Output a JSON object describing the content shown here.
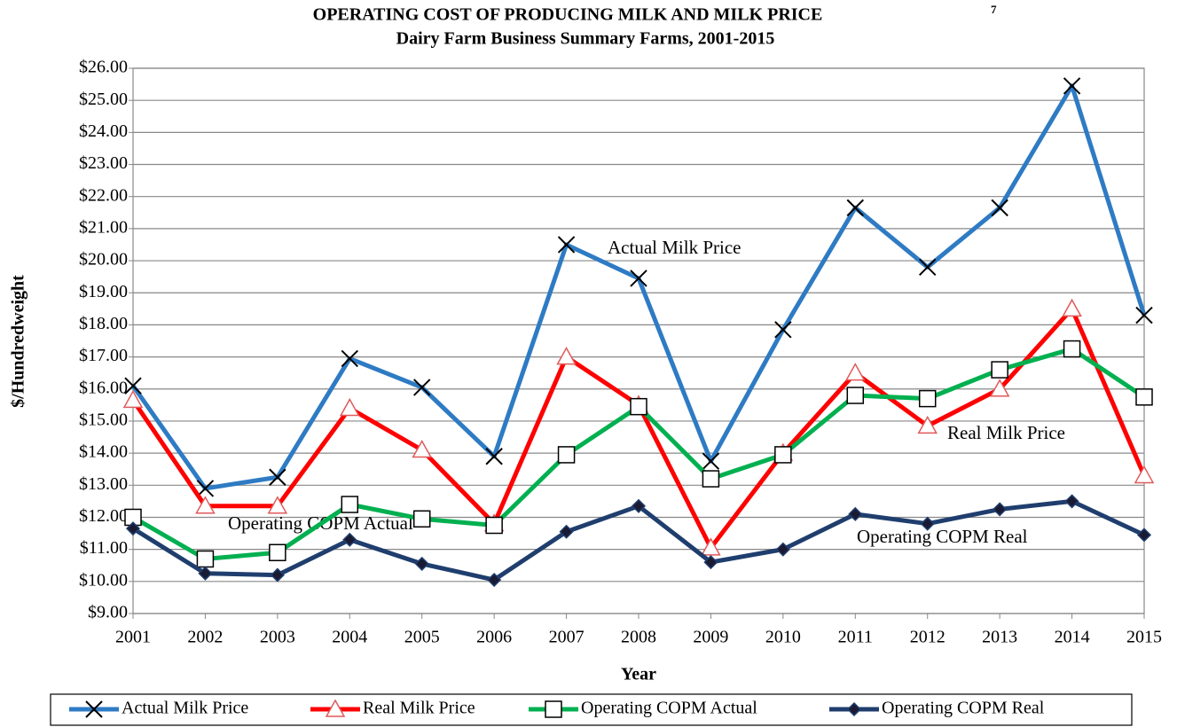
{
  "chart_data": {
    "type": "line",
    "title": "OPERATING COST OF PRODUCING MILK AND MILK PRICE",
    "title_note": "7",
    "subtitle": "Dairy Farm Business Summary Farms, 2001-2015",
    "x_label": "Year",
    "y_label": "$/Hundredweight",
    "annotations": [
      "Actual Milk Price",
      "Real Milk Price",
      "Operating COPM Actual",
      "Operating COPM Real"
    ],
    "categories": [
      "2001",
      "2002",
      "2003",
      "2004",
      "2005",
      "2006",
      "2007",
      "2008",
      "2009",
      "2010",
      "2011",
      "2012",
      "2013",
      "2014",
      "2015"
    ],
    "ylim": [
      9,
      26
    ],
    "yticks": [
      {
        "value": 9,
        "label": "$9.00"
      },
      {
        "value": 10,
        "label": "$10.00"
      },
      {
        "value": 11,
        "label": "$11.00"
      },
      {
        "value": 12,
        "label": "$12.00"
      },
      {
        "value": 13,
        "label": "$13.00"
      },
      {
        "value": 14,
        "label": "$14.00"
      },
      {
        "value": 15,
        "label": "$15.00"
      },
      {
        "value": 16,
        "label": "$16.00"
      },
      {
        "value": 17,
        "label": "$17.00"
      },
      {
        "value": 18,
        "label": "$18.00"
      },
      {
        "value": 19,
        "label": "$19.00"
      },
      {
        "value": 20,
        "label": "$20.00"
      },
      {
        "value": 21,
        "label": "$21.00"
      },
      {
        "value": 22,
        "label": "$22.00"
      },
      {
        "value": 23,
        "label": "$23.00"
      },
      {
        "value": 24,
        "label": "$24.00"
      },
      {
        "value": 25,
        "label": "$25.00"
      },
      {
        "value": 26,
        "label": "$26.00"
      }
    ],
    "grid": true,
    "legend": "bottom",
    "series": [
      {
        "name": "Actual Milk Price",
        "color": "#2e7bc4",
        "marker": "x",
        "values": [
          16.1,
          12.9,
          13.25,
          16.95,
          16.05,
          13.9,
          20.5,
          19.45,
          13.75,
          17.85,
          21.65,
          19.8,
          21.65,
          25.45,
          18.3
        ]
      },
      {
        "name": "Real Milk Price",
        "color": "#ff0000",
        "marker": "triangle",
        "values": [
          15.65,
          12.35,
          12.35,
          15.4,
          14.1,
          11.8,
          17.0,
          15.5,
          11.05,
          14.0,
          16.5,
          14.85,
          16.0,
          18.5,
          13.3
        ]
      },
      {
        "name": "Operating COPM Actual",
        "color": "#00b050",
        "marker": "square",
        "values": [
          12.0,
          10.7,
          10.9,
          12.4,
          11.95,
          11.75,
          13.95,
          15.45,
          13.2,
          13.95,
          15.8,
          15.7,
          16.6,
          17.25,
          15.75
        ]
      },
      {
        "name": "Operating COPM Real",
        "color": "#1f3e6e",
        "marker": "diamond",
        "values": [
          11.65,
          10.25,
          10.2,
          11.3,
          10.55,
          10.05,
          11.55,
          12.35,
          10.6,
          11.0,
          12.1,
          11.8,
          12.25,
          12.5,
          11.45
        ]
      }
    ]
  }
}
